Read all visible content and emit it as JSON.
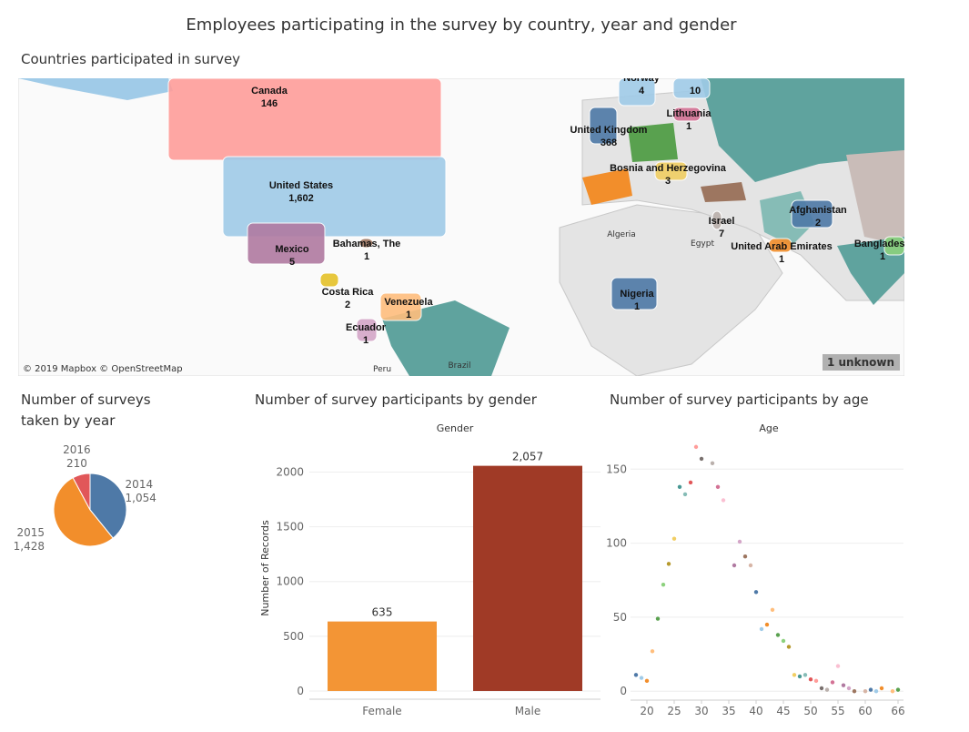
{
  "title": "Employees participating in the survey by country, year and gender",
  "chart_data": [
    {
      "type": "map",
      "title": "Countries participated in survey",
      "categories": [
        "Canada",
        "United States",
        "Mexico",
        "Bahamas, The",
        "Costa Rica",
        "Venezuela",
        "Ecuador",
        "United Kingdom",
        "Norway",
        null,
        "Lithuania",
        "Bosnia and Herzegovina",
        "Israel",
        "Afghanistan",
        "United Arab Emirates",
        "Bangladesh",
        "Nigeria"
      ],
      "values": [
        146,
        1602,
        5,
        1,
        2,
        1,
        1,
        368,
        4,
        10,
        1,
        3,
        7,
        2,
        1,
        1,
        1
      ],
      "value_labels": [
        "146",
        "1,602",
        "5",
        "1",
        "2",
        "1",
        "1",
        "368",
        "4",
        "10",
        "1",
        "3",
        "7",
        "2",
        "1",
        "1",
        "1"
      ],
      "colors": [
        "#ff9d9a",
        "#a0cbe8",
        "#b07aa1",
        "#9d7660",
        "#e6c229",
        "#ffbe7d",
        "#d4a6c8",
        "#4e79a7",
        "#a0cbe8",
        "#a0cbe8",
        "#d37295",
        "#f1ce63",
        "#bab0ac",
        "#4e79a7",
        "#f28e2b",
        "#8cd17d",
        "#4e79a7"
      ],
      "place_labels": [
        "Algeria",
        "Egypt",
        "Peru",
        "Brazil"
      ],
      "unknown_badge": "1 unknown",
      "attribution": "© 2019 Mapbox © OpenStreetMap"
    },
    {
      "type": "pie",
      "title": "Number of surveys taken by year",
      "categories": [
        "2014",
        "2015",
        "2016"
      ],
      "values": [
        1054,
        1428,
        210
      ],
      "value_labels": [
        "1,054",
        "1,428",
        "210"
      ],
      "colors": [
        "#4e79a7",
        "#f28e2b",
        "#e15759"
      ]
    },
    {
      "type": "bar",
      "title": "Number of survey participants by gender",
      "header": "Gender",
      "y_label": "Number of Records",
      "categories": [
        "Female",
        "Male"
      ],
      "values": [
        635,
        2057
      ],
      "value_labels": [
        "635",
        "2,057"
      ],
      "colors": [
        "#f39535",
        "#a03a26"
      ],
      "ylim": [
        -75,
        2320
      ],
      "yticks": [
        0,
        500,
        1000,
        1500,
        2000
      ],
      "grid": true
    },
    {
      "type": "scatter",
      "title": "Number of survey participants by age",
      "header": "Age",
      "x": [
        18,
        19,
        20,
        21,
        22,
        23,
        24,
        25,
        26,
        27,
        28,
        29,
        30,
        32,
        33,
        34,
        36,
        37,
        38,
        39,
        40,
        41,
        42,
        43,
        44,
        45,
        46,
        47,
        48,
        49,
        50,
        51,
        52,
        53,
        54,
        55,
        56,
        57,
        58,
        60,
        61,
        62,
        63,
        65,
        66
      ],
      "y": [
        11,
        9,
        7,
        27,
        49,
        72,
        86,
        103,
        138,
        133,
        141,
        165,
        157,
        154,
        138,
        129,
        85,
        101,
        91,
        85,
        67,
        42,
        45,
        55,
        38,
        34,
        30,
        11,
        10,
        11,
        8,
        7,
        2,
        1,
        6,
        17,
        4,
        2,
        0,
        0,
        1,
        0,
        2,
        0,
        1
      ],
      "palette": [
        "#4e79a7",
        "#a0cbe8",
        "#f28e2b",
        "#ffbe7d",
        "#59a14f",
        "#8cd17d",
        "#b6992d",
        "#f1ce63",
        "#499894",
        "#86bcb6",
        "#e15759",
        "#ff9d9a",
        "#79706e",
        "#bab0ac",
        "#d37295",
        "#fabfd2",
        "#b07aa1",
        "#d4a6c8",
        "#9d7660",
        "#d7b5a6"
      ],
      "xlim": [
        17,
        67
      ],
      "xticks": [
        20,
        25,
        30,
        35,
        40,
        45,
        50,
        55,
        60,
        66
      ],
      "ylim": [
        -6,
        168
      ],
      "yticks": [
        0,
        50,
        100,
        150
      ],
      "grid": true
    }
  ]
}
